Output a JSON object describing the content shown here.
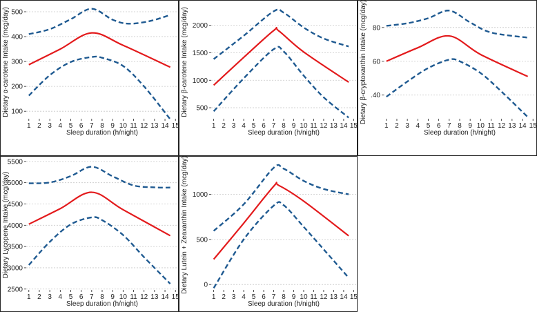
{
  "colors": {
    "estimate": "#e31a1c",
    "ci": "#1f5a91",
    "grid": "#c8c8c8",
    "frame": "#222222"
  },
  "chart_data": [
    {
      "type": "line",
      "x_label": "Sleep duration (h/night)",
      "y_label": "Dietary α-carotene Intake (mcg/day)",
      "x_ticks": [
        "1",
        "2",
        "3",
        "4",
        "5",
        "6",
        "7",
        "8",
        "9",
        "10",
        "11",
        "12",
        "13",
        "14",
        "15"
      ],
      "y_ticks": [
        "100",
        "200",
        "300",
        "400",
        "500"
      ],
      "ylim": [
        70,
        525
      ],
      "series": [
        {
          "name": "estimate",
          "style": "solid",
          "x": [
            1,
            4,
            7,
            10,
            14.5
          ],
          "y": [
            287,
            350,
            415,
            365,
            277
          ]
        },
        {
          "name": "upper_ci",
          "style": "dashed",
          "x": [
            1,
            3,
            5,
            7,
            9,
            10.5,
            12.5,
            14.5
          ],
          "y": [
            410,
            430,
            470,
            512,
            468,
            452,
            462,
            487
          ]
        },
        {
          "name": "lower_ci",
          "style": "dashed",
          "x": [
            1,
            3,
            5,
            7,
            8,
            10,
            12,
            14.5
          ],
          "y": [
            163,
            245,
            298,
            318,
            315,
            282,
            200,
            68
          ]
        }
      ]
    },
    {
      "type": "line",
      "x_label": "Sleep duration (h/night)",
      "y_label": "Dietary β-carotene Intake (mcg/day)",
      "x_ticks": [
        "1",
        "2",
        "3",
        "4",
        "5",
        "6",
        "7",
        "8",
        "9",
        "10",
        "11",
        "12",
        "13",
        "14",
        "15"
      ],
      "y_ticks": [
        "500",
        "1000",
        "1500",
        "2000"
      ],
      "ylim": [
        300,
        2360
      ],
      "series": [
        {
          "name": "estimate",
          "style": "solid",
          "x": [
            1,
            4,
            7,
            7.5,
            10,
            14.5
          ],
          "y": [
            910,
            1415,
            1905,
            1900,
            1515,
            965
          ]
        },
        {
          "name": "upper_ci",
          "style": "dashed",
          "x": [
            1,
            4,
            7,
            8,
            10,
            12,
            14.5
          ],
          "y": [
            1385,
            1810,
            2255,
            2230,
            1960,
            1760,
            1615
          ]
        },
        {
          "name": "lower_ci",
          "style": "dashed",
          "x": [
            1,
            4,
            7,
            8,
            10,
            12,
            14.5
          ],
          "y": [
            435,
            1035,
            1565,
            1525,
            1085,
            690,
            320
          ]
        }
      ]
    },
    {
      "type": "line",
      "x_label": "Sleep duration (h/night)",
      "y_label": "Dietary β-cryptoxanthin Intake (mcg/day)",
      "x_ticks": [
        "1",
        "2",
        "3",
        "4",
        "5",
        "6",
        "7",
        "8",
        "9",
        "10",
        "11",
        "12",
        "13",
        "14",
        "15"
      ],
      "y_ticks": [
        ".40",
        "60",
        "80"
      ],
      "ylim": [
        26,
        93
      ],
      "series": [
        {
          "name": "estimate",
          "style": "solid",
          "x": [
            1,
            4,
            7,
            10,
            14.5
          ],
          "y": [
            60,
            68,
            75,
            64,
            51
          ]
        },
        {
          "name": "upper_ci",
          "style": "dashed",
          "x": [
            1,
            3,
            5,
            7,
            9,
            11,
            14.5
          ],
          "y": [
            81,
            82.5,
            85.5,
            90,
            83,
            77,
            74
          ]
        },
        {
          "name": "lower_ci",
          "style": "dashed",
          "x": [
            1,
            3,
            5,
            7,
            8,
            10,
            12,
            14.5
          ],
          "y": [
            39,
            48,
            56,
            61,
            60,
            53,
            42,
            27
          ]
        }
      ]
    },
    {
      "type": "line",
      "x_label": "Sleep duration (h/night)",
      "y_label": "Dietary Lycopene Intake (mcg/day)",
      "x_ticks": [
        "1",
        "2",
        "3",
        "4",
        "5",
        "6",
        "7",
        "8",
        "9",
        "10",
        "11",
        "12",
        "13",
        "14",
        "15"
      ],
      "y_ticks": [
        "2500",
        "3000",
        "3500",
        "4000",
        "4500",
        "5000",
        "5500"
      ],
      "ylim": [
        2480,
        5530
      ],
      "series": [
        {
          "name": "estimate",
          "style": "solid",
          "x": [
            1,
            4,
            7,
            10,
            14.5
          ],
          "y": [
            4025,
            4390,
            4775,
            4365,
            3755
          ]
        },
        {
          "name": "upper_ci",
          "style": "dashed",
          "x": [
            1,
            3,
            5,
            7,
            9,
            11,
            13,
            14.5
          ],
          "y": [
            4985,
            5005,
            5155,
            5375,
            5150,
            4935,
            4890,
            4885
          ]
        },
        {
          "name": "lower_ci",
          "style": "dashed",
          "x": [
            1,
            3,
            5,
            7,
            8,
            10,
            12,
            14.5
          ],
          "y": [
            3065,
            3610,
            4020,
            4185,
            4120,
            3770,
            3250,
            2625
          ]
        }
      ]
    },
    {
      "type": "line",
      "x_label": "Sleep duration (h/night)",
      "y_label": "Dietary Lutein + Zeaxanthin Intake (mcg/day)",
      "x_ticks": [
        "1",
        "2",
        "3",
        "4",
        "5",
        "6",
        "7",
        "8",
        "9",
        "10",
        "11",
        "12",
        "13",
        "14",
        "15"
      ],
      "y_ticks": [
        "0",
        "500",
        "1000"
      ],
      "ylim": [
        -60,
        1380
      ],
      "series": [
        {
          "name": "estimate",
          "style": "solid",
          "x": [
            1,
            4,
            7,
            7.5,
            10,
            14.5
          ],
          "y": [
            280,
            680,
            1090,
            1100,
            925,
            540
          ]
        },
        {
          "name": "upper_ci",
          "style": "dashed",
          "x": [
            1,
            4,
            7,
            8,
            10,
            12,
            14.5
          ],
          "y": [
            595,
            890,
            1295,
            1285,
            1150,
            1060,
            1000
          ]
        },
        {
          "name": "lower_ci",
          "style": "dashed",
          "x": [
            1,
            4,
            7,
            8,
            10,
            12,
            14.5
          ],
          "y": [
            -40,
            500,
            875,
            880,
            640,
            390,
            75
          ]
        }
      ]
    }
  ]
}
